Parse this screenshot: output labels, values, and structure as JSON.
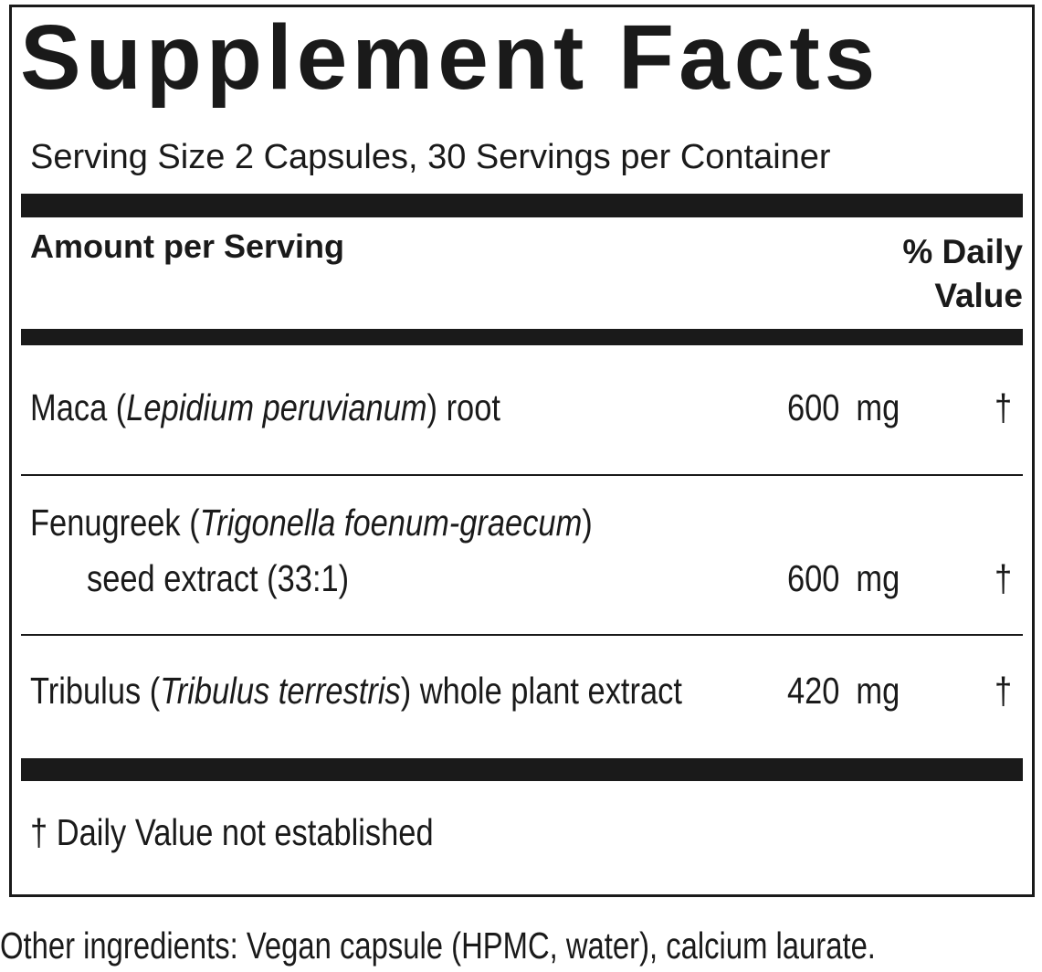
{
  "title": "Supplement Facts",
  "serving": "Serving Size 2 Capsules, 30 Servings per Container",
  "header": {
    "amount": "Amount per Serving",
    "daily_value": "% Daily Value"
  },
  "rows": [
    {
      "name": [
        "Maca (",
        "Lepidium peruvianum",
        ") root"
      ],
      "amount": "600 mg",
      "dv": "†"
    },
    {
      "name": [
        "Fenugreek (",
        "Trigonella foenum-graecum",
        ")"
      ],
      "name_line2": "seed extract (33:1)",
      "amount": "600 mg",
      "dv": "†"
    },
    {
      "name": [
        "Tribulus (",
        "Tribulus terrestris",
        ") whole plant extract"
      ],
      "amount": "420 mg",
      "dv": "†"
    }
  ],
  "footnote": "† Daily Value not established",
  "other_ingredients": "Other ingredients: Vegan capsule (HPMC, water), calcium laurate."
}
